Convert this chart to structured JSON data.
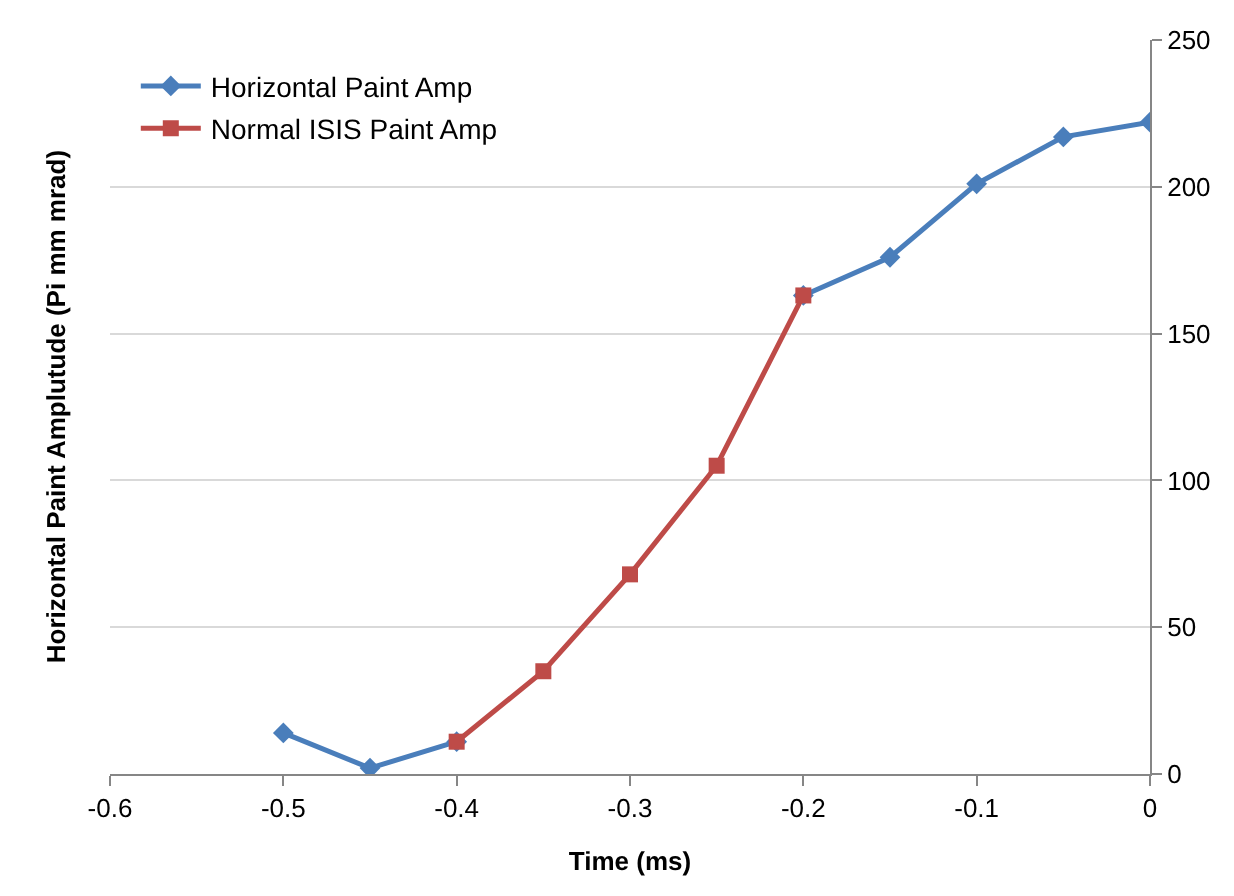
{
  "chart_data": {
    "type": "line",
    "xlabel": "Time (ms)",
    "ylabel": "Horizontal Paint Amplutude (Pi mm mrad)",
    "x": [
      -0.5,
      -0.45,
      -0.4,
      -0.35,
      -0.3,
      -0.25,
      -0.2,
      -0.15,
      -0.1,
      -0.05,
      0
    ],
    "series": [
      {
        "name": "Horizontal Paint Amp",
        "color": "#4a7ebb",
        "marker": "diamond",
        "values": [
          14,
          2,
          11,
          null,
          null,
          null,
          163,
          176,
          201,
          217,
          222
        ]
      },
      {
        "name": "Normal ISIS Paint Amp",
        "color": "#be4b48",
        "marker": "square",
        "x": [
          -0.4,
          -0.35,
          -0.3,
          -0.25,
          -0.2
        ],
        "values": [
          11,
          35,
          68,
          105,
          163
        ]
      }
    ],
    "xlim": [
      -0.6,
      0
    ],
    "xticks": [
      {
        "value": -0.6,
        "label": "-0.6"
      },
      {
        "value": -0.5,
        "label": "-0.5"
      },
      {
        "value": -0.4,
        "label": "-0.4"
      },
      {
        "value": -0.3,
        "label": "-0.3"
      },
      {
        "value": -0.2,
        "label": "-0.2"
      },
      {
        "value": -0.1,
        "label": "-0.1"
      },
      0
    ],
    "ylim": [
      0,
      250
    ],
    "yticks": [
      0,
      50,
      100,
      150,
      200,
      250
    ],
    "grid": "y",
    "legend": "top left",
    "line_style": "solid"
  }
}
